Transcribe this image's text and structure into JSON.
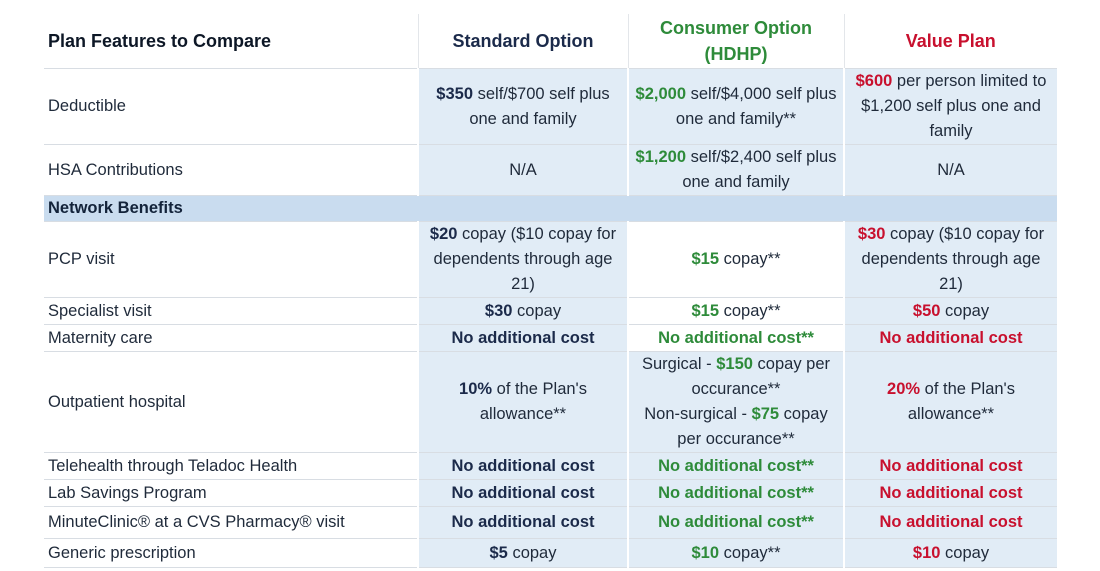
{
  "header": {
    "feature_label": "Plan Features to Compare",
    "standard": "Standard Option",
    "consumer_line1": "Consumer Option",
    "consumer_line2": "(HDHP)",
    "value": "Value Plan"
  },
  "section_label": "Network Benefits",
  "rows": {
    "deductible": {
      "label": "Deductible",
      "std_bold": "$350",
      "std_text": " self/$700 self plus one and family",
      "con_bold": "$2,000",
      "con_text": " self/$4,000 self plus one and family**",
      "val_bold": "$600",
      "val_text": " per person limited to $1,200 self plus one and family"
    },
    "hsa": {
      "label": "HSA Contributions",
      "std_text": "N/A",
      "con_bold": "$1,200",
      "con_text": " self/$2,400 self plus one and family",
      "val_text": "N/A"
    },
    "pcp": {
      "label": "PCP visit",
      "std_bold": "$20",
      "std_text": " copay ($10 copay for dependents through age 21)",
      "con_bold": "$15",
      "con_text": " copay**",
      "val_bold": "$30",
      "val_text": " copay ($10 copay for dependents through age 21)"
    },
    "specialist": {
      "label": "Specialist visit",
      "std_bold": "$30",
      "std_text": " copay",
      "con_bold": "$15",
      "con_text": " copay**",
      "val_bold": "$50",
      "val_text": " copay"
    },
    "maternity": {
      "label": "Maternity care",
      "std_bold": "No additional cost",
      "con_bold": "No additional cost**",
      "val_bold": "No additional cost"
    },
    "outpatient": {
      "label": "Outpatient hospital",
      "std_bold": "10%",
      "std_text": " of the Plan's allowance**",
      "con_a_pre": "Surgical - ",
      "con_a_bold": "$150",
      "con_a_post": " copay per occurance**",
      "con_b_pre": "Non-surgical - ",
      "con_b_bold": "$75",
      "con_b_post": " copay per occurance**",
      "val_bold": "20%",
      "val_text": " of the Plan's allowance**"
    },
    "telehealth": {
      "label": "Telehealth through Teladoc Health",
      "std_bold": "No additional cost",
      "con_bold": "No additional cost**",
      "val_bold": "No additional cost"
    },
    "lab": {
      "label": "Lab Savings Program",
      "std_bold": "No additional cost",
      "con_bold": "No additional cost**",
      "val_bold": "No additional cost"
    },
    "minuteclinic": {
      "label": "MinuteClinic® at a CVS Pharmacy® visit",
      "std_bold": "No additional cost",
      "con_bold": "No additional cost**",
      "val_bold": "No additional cost"
    },
    "generic": {
      "label": "Generic prescription",
      "std_bold": "$5",
      "std_text": " copay",
      "con_bold": "$10",
      "con_text": " copay**",
      "val_bold": "$10",
      "val_text": " copay"
    }
  },
  "colors": {
    "standard": "#1b2a4a",
    "consumer": "#2e8b3a",
    "value": "#c8102e",
    "cell_bg": "#e1ecf6",
    "section_bg": "#c9dcef"
  }
}
